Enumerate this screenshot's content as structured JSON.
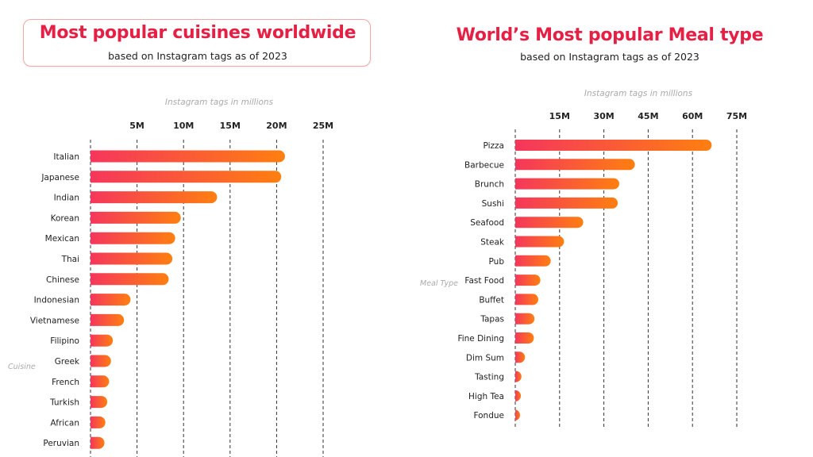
{
  "chart_data": [
    {
      "type": "bar",
      "orientation": "horizontal",
      "title": "Most popular cuisines worldwide",
      "subtitle": "based on Instagram tags as of 2023",
      "xlabel": "Instagram tags in millions",
      "ylabel": "Cuisine",
      "xlim": [
        0,
        25
      ],
      "ticks": [
        5,
        10,
        15,
        20,
        25
      ],
      "tick_labels": [
        "5M",
        "10M",
        "15M",
        "20M",
        "25M"
      ],
      "categories": [
        "Italian",
        "Japanese",
        "Indian",
        "Korean",
        "Mexican",
        "Thai",
        "Chinese",
        "Indonesian",
        "Vietnamese",
        "Filipino",
        "Greek",
        "French",
        "Turkish",
        "African",
        "Peruvian"
      ],
      "values": [
        20.9,
        20.5,
        13.6,
        9.7,
        9.1,
        8.8,
        8.4,
        4.3,
        3.6,
        2.4,
        2.2,
        2.0,
        1.8,
        1.6,
        1.5
      ],
      "grid": true,
      "colors": {
        "start": "#f5365c",
        "end": "#ff7f10"
      }
    },
    {
      "type": "bar",
      "orientation": "horizontal",
      "title": "World’s Most popular Meal type",
      "subtitle": "based on Instagram tags as of 2023",
      "xlabel": "Instagram tags in millions",
      "ylabel": "Meal Type",
      "xlim": [
        0,
        75
      ],
      "ticks": [
        15,
        30,
        45,
        60,
        75
      ],
      "tick_labels": [
        "15M",
        "30M",
        "45M",
        "60M",
        "75M"
      ],
      "categories": [
        "Pizza",
        "Barbecue",
        "Brunch",
        "Sushi",
        "Seafood",
        "Steak",
        "Pub",
        "Fast Food",
        "Buffet",
        "Tapas",
        "Fine Dining",
        "Dim Sum",
        "Tasting",
        "High Tea",
        "Fondue"
      ],
      "values": [
        66.5,
        40.5,
        35.2,
        34.7,
        23.0,
        16.5,
        12.0,
        8.5,
        7.8,
        6.5,
        6.3,
        3.3,
        2.1,
        1.9,
        1.2
      ],
      "grid": true,
      "colors": {
        "start": "#f5365c",
        "end": "#ff7f10"
      }
    }
  ]
}
